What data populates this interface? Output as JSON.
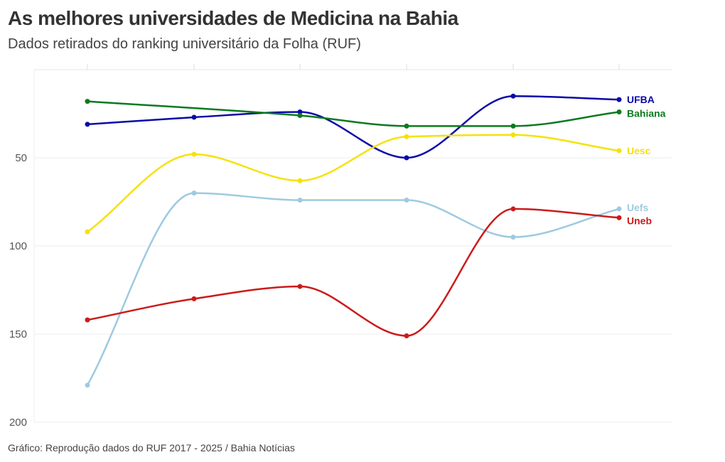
{
  "header": {
    "title": "As melhores universidades de Medicina na Bahia",
    "subtitle": "Dados retirados do ranking universitário da Folha (RUF)"
  },
  "footer": {
    "source": "Gráfico: Reprodução dados do RUF 2017 - 2025 / Bahia Notícias"
  },
  "chart_data": {
    "type": "line",
    "title": "As melhores universidades de Medicina na Bahia",
    "subtitle": "Dados retirados do ranking universitário da Folha (RUF)",
    "xlabel": "",
    "ylabel": "",
    "x": [
      1,
      2,
      3,
      4,
      5,
      6
    ],
    "x_tick_labels": [],
    "y_reversed": true,
    "ylim": [
      0,
      200
    ],
    "y_ticks": [
      50,
      100,
      150,
      200
    ],
    "grid": true,
    "legend": "inline-right",
    "series": [
      {
        "name": "UFBA",
        "color": "#0a0aa8",
        "values": [
          31,
          27,
          24,
          50,
          15,
          17
        ]
      },
      {
        "name": "Bahiana",
        "color": "#0a7a1e",
        "values": [
          18,
          null,
          26,
          32,
          32,
          24
        ]
      },
      {
        "name": "Uesc",
        "color": "#f5e20a",
        "values": [
          92,
          48,
          63,
          38,
          37,
          46
        ]
      },
      {
        "name": "Uefs",
        "color": "#9ecae1",
        "values": [
          179,
          70,
          74,
          74,
          95,
          79
        ]
      },
      {
        "name": "Uneb",
        "color": "#cc1a1a",
        "values": [
          142,
          130,
          123,
          151,
          79,
          84
        ]
      }
    ]
  }
}
